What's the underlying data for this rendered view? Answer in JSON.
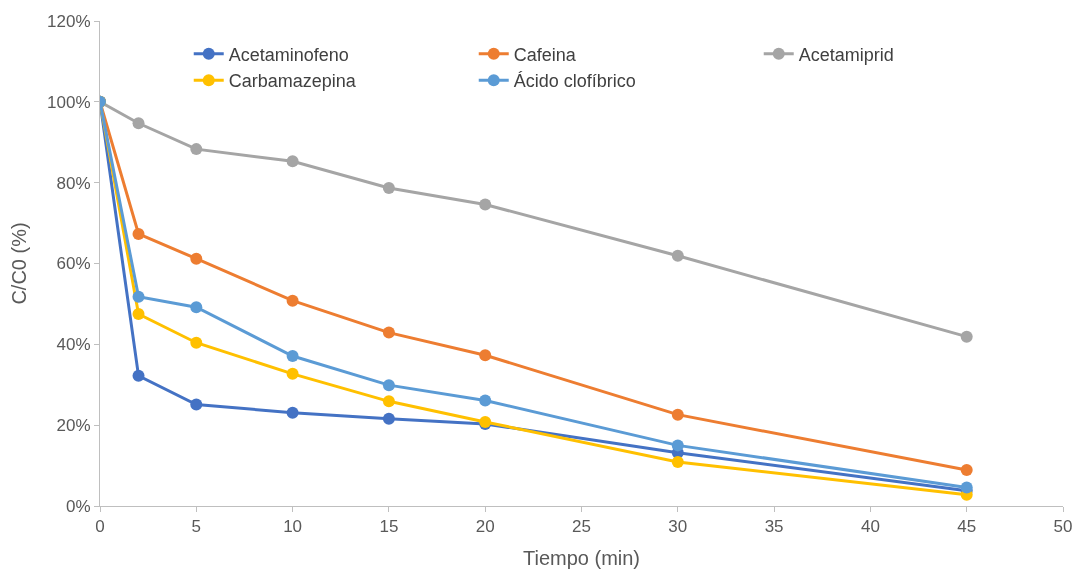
{
  "chart_data": {
    "type": "line",
    "xlabel": "Tiempo (min)",
    "ylabel": "C/C0 (%)",
    "x": [
      0,
      2,
      5,
      10,
      15,
      20,
      30,
      45
    ],
    "series": [
      {
        "name": "Acetaminofeno",
        "color": "#4472c4",
        "values": [
          100,
          32.2,
          25.1,
          23.1,
          21.6,
          20.3,
          13.2,
          3.8
        ]
      },
      {
        "name": "Cafeina",
        "color": "#ed7d31",
        "values": [
          100,
          67.3,
          61.2,
          50.8,
          42.9,
          37.3,
          22.6,
          8.9
        ]
      },
      {
        "name": "Acetamiprid",
        "color": "#a5a5a5",
        "values": [
          100,
          94.7,
          88.3,
          85.3,
          78.7,
          74.6,
          61.9,
          41.9
        ]
      },
      {
        "name": "Carbamazepina",
        "color": "#ffc000",
        "values": [
          100,
          47.5,
          40.4,
          32.7,
          25.9,
          20.8,
          10.9,
          2.8
        ]
      },
      {
        "name": "Ácido clofíbrico",
        "color": "#5b9bd5",
        "values": [
          100,
          51.8,
          49.2,
          37.1,
          29.9,
          26.1,
          15.0,
          4.6
        ]
      }
    ],
    "xlim": [
      0,
      50
    ],
    "xticks": [
      0,
      5,
      10,
      15,
      20,
      25,
      30,
      35,
      40,
      45,
      50
    ],
    "ylim": [
      0,
      120
    ],
    "yticks": [
      {
        "value": 0,
        "label": "0%"
      },
      {
        "value": 20,
        "label": "20%"
      },
      {
        "value": 40,
        "label": "40%"
      },
      {
        "value": 60,
        "label": "60%"
      },
      {
        "value": 80,
        "label": "80%"
      },
      {
        "value": 100,
        "label": "100%"
      },
      {
        "value": 120,
        "label": "120%"
      }
    ],
    "marker": "circle",
    "line_style": "solid",
    "legend": "top right",
    "grid": false
  }
}
